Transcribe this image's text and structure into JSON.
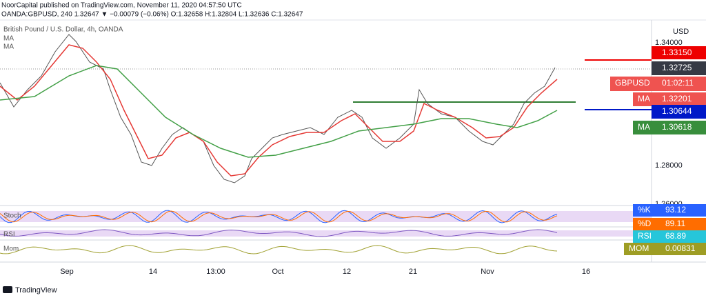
{
  "header": {
    "publisher": "NoorCapital published on TradingView.com, November 11, 2020 04:57:50 UTC",
    "symbol_line": "OANDA:GBPUSD, 240  1.32647 ▼ −0.00079 (−0.06%) O:1.32658 H:1.32804 L:1.32636 C:1.32647"
  },
  "legend": {
    "title": "British Pound / U.S. Dollar, 4h, OANDA",
    "ma1": "MA",
    "ma2": "MA"
  },
  "price_axis": {
    "currency": "USD",
    "ticks": [
      "1.34000",
      "1.28000",
      "1.26000"
    ]
  },
  "price_labels": [
    {
      "text": "1.33150"
    },
    {
      "text": "1.32725"
    },
    {
      "name": "GBPUSD",
      "text": "01:02:11"
    },
    {
      "name": "MA",
      "text": "1.32201"
    },
    {
      "text": "1.30644"
    },
    {
      "name": "MA",
      "text": "1.30618"
    }
  ],
  "indicators": [
    {
      "label": "Stoch",
      "name": "%K",
      "value": "93.12"
    },
    {
      "name": "%D",
      "value": "89.11"
    },
    {
      "label": "RSI",
      "name": "RSI",
      "value": "68.89"
    },
    {
      "label": "Mom",
      "name": "MOM",
      "value": "0.00831"
    }
  ],
  "time_axis": [
    "Sep",
    "14",
    "13:00",
    "Oct",
    "12",
    "21",
    "Nov",
    "16"
  ],
  "footer": "TradingView"
}
